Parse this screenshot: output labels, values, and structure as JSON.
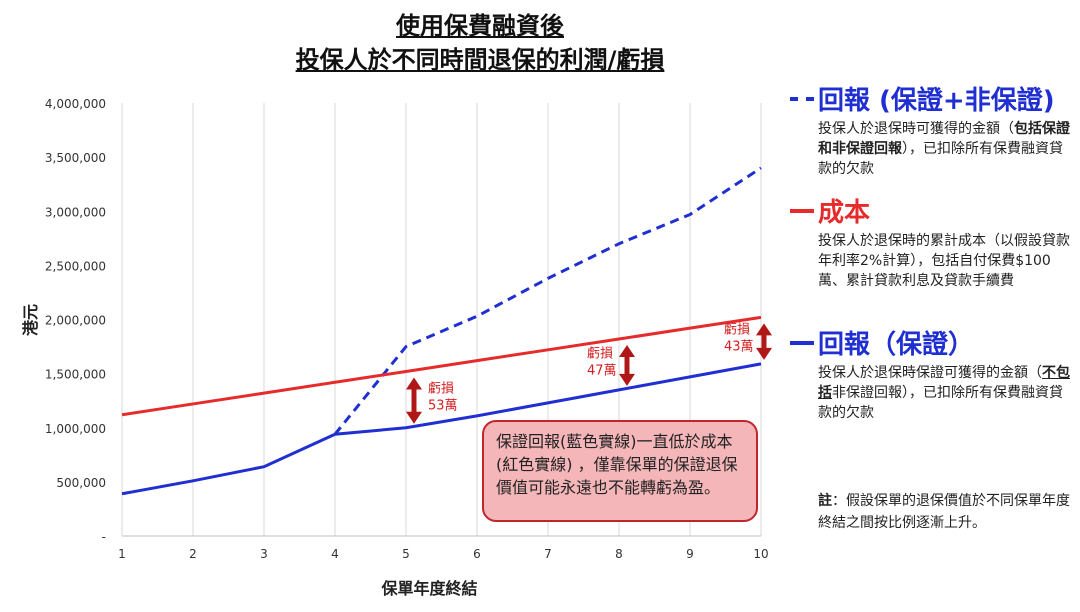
{
  "title_line1": "使用保費融資後",
  "title_line2": "投保人於不同時間退保的利潤/虧損",
  "chart_data": {
    "type": "line",
    "xlabel": "保單年度終結",
    "ylabel": "港元",
    "x": [
      1,
      2,
      3,
      4,
      5,
      6,
      7,
      8,
      9,
      10
    ],
    "ylim": [
      0,
      4000000
    ],
    "yticks": [
      0,
      500000,
      1000000,
      1500000,
      2000000,
      2500000,
      3000000,
      3500000,
      4000000
    ],
    "ytick_labels": [
      "-",
      "500,000",
      "1,000,000",
      "1,500,000",
      "2,000,000",
      "2,500,000",
      "3,000,000",
      "3,500,000",
      "4,000,000"
    ],
    "grid": "vertical",
    "series": [
      {
        "name": "回報 (保證+非保證)",
        "style": "dashed",
        "color": "#1f2fd1",
        "values": [
          390000,
          510000,
          640000,
          940000,
          1750000,
          2030000,
          2380000,
          2700000,
          2970000,
          3400000
        ]
      },
      {
        "name": "成本",
        "style": "solid",
        "color": "#e52b2b",
        "values": [
          1120000,
          1220000,
          1320000,
          1420000,
          1520000,
          1620000,
          1720000,
          1820000,
          1920000,
          2020000
        ]
      },
      {
        "name": "回報（保證）",
        "style": "solid",
        "color": "#1f2fd1",
        "values": [
          390000,
          510000,
          640000,
          940000,
          1000000,
          1110000,
          1230000,
          1350000,
          1470000,
          1590000
        ]
      }
    ],
    "annotations": [
      {
        "x": 5,
        "label_line1": "虧損",
        "label_line2": "53萬"
      },
      {
        "x": 8,
        "label_line1": "虧損",
        "label_line2": "47萬"
      },
      {
        "x": 10,
        "label_line1": "虧損",
        "label_line2": "43萬"
      }
    ]
  },
  "legend": {
    "total": {
      "label": "回報 (保證+非保證)",
      "desc_pre": "投保人於退保時可獲得的金額（",
      "desc_bold": "包括保證和非保證回報",
      "desc_post": "），已扣除所有保費融資貸款的欠款"
    },
    "cost": {
      "label": "成本",
      "desc": "投保人於退保時的累計成本（以假設貸款年利率2%計算），包括自付保費$100萬、累計貸款利息及貸款手續費"
    },
    "guaranteed": {
      "label": "回報（保證）",
      "desc_pre": "投保人於退保時保證可獲得的金額（",
      "desc_bold": "不包括",
      "desc_post": "非保證回報），已扣除所有保費融資貸款的欠款"
    }
  },
  "callout_text": "保證回報(藍色實線)一直低於成本(紅色實線) ，僅靠保單的保證退保價值可能永遠也不能轉虧為盈。",
  "note": {
    "bold": "註",
    "text": "：假設保單的退保價值於不同保單年度終結之間按比例逐漸上升。"
  },
  "colors": {
    "blue": "#1f2fd1",
    "red": "#e52b2b",
    "dark_red": "#b01818",
    "callout_bg": "#f4b6b9"
  }
}
